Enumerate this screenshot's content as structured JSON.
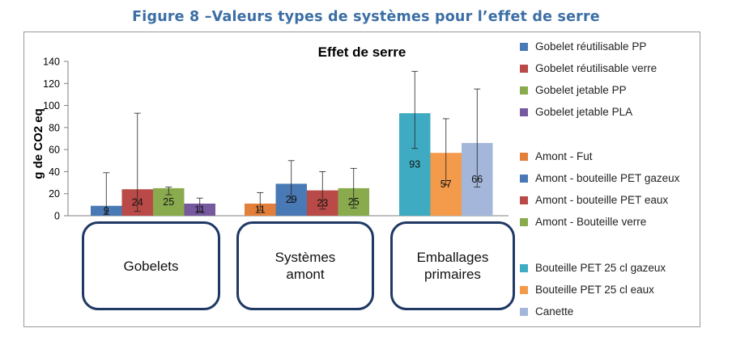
{
  "figure_title": "Figure 8 –Valeurs types de systèmes pour l’effet de serre",
  "chart_data": {
    "type": "bar",
    "title": "Effet de serre",
    "ylabel": "g de CO2 eq",
    "xlabel": "",
    "ylim": [
      0,
      140
    ],
    "yticks": [
      0,
      20,
      40,
      60,
      80,
      100,
      120,
      140
    ],
    "groups": [
      {
        "label": "Gobelets",
        "series": [
          {
            "name": "Gobelet réutilisable PP",
            "color": "#4a7ab5",
            "value": 9,
            "label": "9",
            "err_low": 1,
            "err_high": 39
          },
          {
            "name": "Gobelet réutilisable verre",
            "color": "#b94a47",
            "value": 24,
            "label": "24",
            "err_low": 4,
            "err_high": 93
          },
          {
            "name": "Gobelet jetable PP",
            "color": "#8aab4d",
            "value": 25,
            "label": "25",
            "err_low": 19,
            "err_high": 26
          },
          {
            "name": "Gobelet jetable PLA",
            "color": "#77599e",
            "value": 11,
            "label": "11",
            "err_low": 4,
            "err_high": 16
          }
        ]
      },
      {
        "label": "Systèmes amont",
        "series": [
          {
            "name": "Amont - Fut",
            "color": "#e27f3a",
            "value": 11,
            "label": "11",
            "err_low": 5,
            "err_high": 21
          },
          {
            "name": "Amont - bouteille PET gazeux",
            "color": "#4a7ab5",
            "value": 29,
            "label": "29",
            "err_low": 12,
            "err_high": 50
          },
          {
            "name": "Amont - bouteille PET eaux",
            "color": "#b94a47",
            "value": 23,
            "label": "23",
            "err_low": 6,
            "err_high": 40
          },
          {
            "name": "Amont - Bouteille verre",
            "color": "#8aab4d",
            "value": 25,
            "label": "25",
            "err_low": 7,
            "err_high": 43
          }
        ]
      },
      {
        "label": "Emballages primaires",
        "series": [
          {
            "name": "Bouteille PET 25 cl gazeux",
            "color": "#3fabc2",
            "value": 93,
            "label": "93",
            "err_low": 61,
            "err_high": 131
          },
          {
            "name": "Bouteille PET 25 cl eaux",
            "color": "#f39a4b",
            "value": 57,
            "label": "57",
            "err_low": 28,
            "err_high": 88
          },
          {
            "name": "Canette",
            "color": "#a4b7da",
            "value": 66,
            "label": "66",
            "err_low": 26,
            "err_high": 115
          }
        ]
      }
    ],
    "legend_groups": [
      [
        "Gobelet réutilisable PP",
        "Gobelet réutilisable verre",
        "Gobelet jetable PP",
        "Gobelet jetable PLA"
      ],
      [
        "Amont - Fut",
        "Amont - bouteille PET gazeux",
        "Amont - bouteille PET eaux",
        "Amont - Bouteille verre"
      ],
      [
        "Bouteille PET 25 cl gazeux",
        "Bouteille PET 25 cl eaux",
        "Canette"
      ]
    ],
    "legend_position": "right",
    "grid": false
  },
  "category_boxes": [
    {
      "line1": "Gobelets",
      "line2": ""
    },
    {
      "line1": "Systèmes",
      "line2": "amont"
    },
    {
      "line1": "Emballages",
      "line2": "primaires"
    }
  ]
}
